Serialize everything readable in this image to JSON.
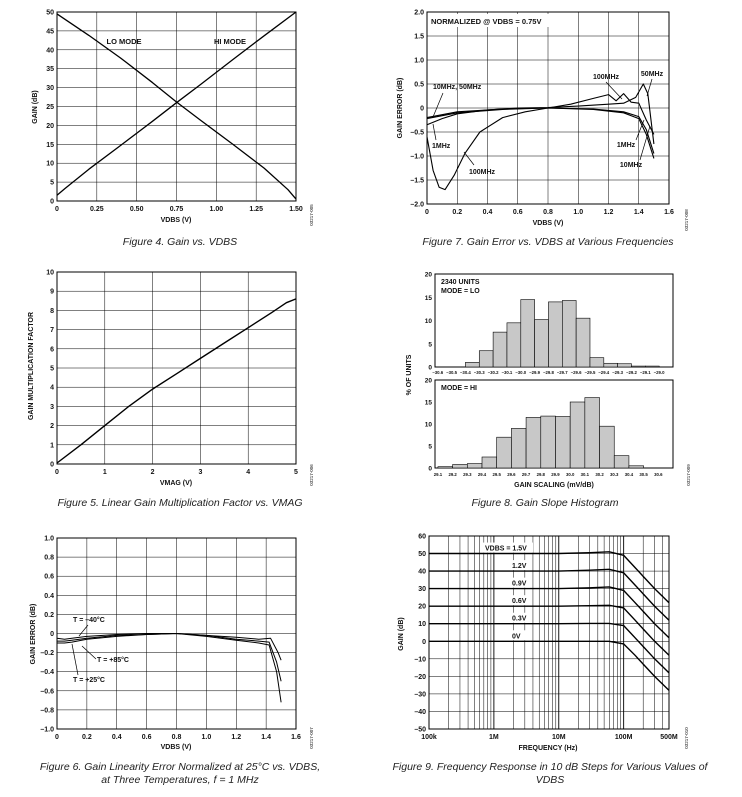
{
  "chart_data": [
    {
      "id": "fig4",
      "type": "line",
      "caption": "Figure 4. Gain vs. VDBS",
      "xlabel": "VDBS (V)",
      "ylabel": "GAIN (dB)",
      "xlim": [
        0,
        1.5
      ],
      "ylim": [
        0,
        50
      ],
      "xticks": [
        "0",
        "0.25",
        "0.50",
        "0.75",
        "1.00",
        "1.25",
        "1.50"
      ],
      "yticks": [
        "0",
        "5",
        "10",
        "15",
        "20",
        "25",
        "30",
        "35",
        "40",
        "45",
        "50"
      ],
      "grid": true,
      "series": [
        {
          "name": "LO MODE",
          "x": [
            0,
            0.2,
            0.4,
            0.6,
            0.75,
            0.9,
            1.1,
            1.3,
            1.45,
            1.5
          ],
          "y": [
            49.5,
            43.8,
            37.8,
            31.3,
            26.2,
            21.4,
            15.1,
            8.7,
            3.0,
            0.5
          ]
        },
        {
          "name": "HI MODE",
          "x": [
            0,
            0.05,
            0.2,
            0.4,
            0.6,
            0.75,
            0.9,
            1.1,
            1.3,
            1.5
          ],
          "y": [
            1.5,
            3.3,
            8.4,
            14.7,
            21.1,
            26.0,
            30.8,
            37.3,
            43.7,
            50.0
          ]
        }
      ],
      "annotations": [
        "LO MODE",
        "HI MODE"
      ],
      "side_code": "03217-005"
    },
    {
      "id": "fig7",
      "type": "line",
      "caption": "Figure 7. Gain Error vs. VDBS at Various Frequencies",
      "xlabel": "VDBS (V)",
      "ylabel": "GAIN ERROR (dB)",
      "xlim": [
        0,
        1.6
      ],
      "ylim": [
        -2.0,
        2.0
      ],
      "xticks": [
        "0",
        "0.2",
        "0.4",
        "0.6",
        "0.8",
        "1.0",
        "1.2",
        "1.4",
        "1.6"
      ],
      "yticks": [
        "–2.0",
        "–1.5",
        "–1.0",
        "–0.5",
        "0",
        "0.5",
        "1.0",
        "1.5",
        "2.0"
      ],
      "grid": true,
      "series": [
        {
          "name": "100MHz",
          "x": [
            0,
            0.04,
            0.08,
            0.12,
            0.18,
            0.25,
            0.35,
            0.5,
            0.65,
            0.8,
            0.95,
            1.1,
            1.2,
            1.25,
            1.3,
            1.35,
            1.4,
            1.45,
            1.5
          ],
          "y": [
            -0.6,
            -1.3,
            -1.65,
            -1.7,
            -1.4,
            -0.95,
            -0.5,
            -0.2,
            -0.08,
            0.0,
            0.08,
            0.2,
            0.28,
            0.15,
            0.3,
            0.12,
            0.1,
            -0.25,
            -0.55
          ]
        },
        {
          "name": "50MHz",
          "x": [
            0,
            0.1,
            0.2,
            0.4,
            0.6,
            0.8,
            1.0,
            1.2,
            1.3,
            1.38,
            1.43,
            1.46,
            1.5
          ],
          "y": [
            -0.35,
            -0.22,
            -0.12,
            -0.04,
            0.0,
            0.01,
            0.04,
            0.08,
            0.1,
            0.22,
            0.5,
            0.3,
            -0.75
          ]
        },
        {
          "name": "10MHz",
          "x": [
            0,
            0.2,
            0.5,
            0.8,
            1.1,
            1.3,
            1.4,
            1.45,
            1.5
          ],
          "y": [
            -0.2,
            -0.08,
            -0.02,
            0.0,
            -0.02,
            -0.08,
            -0.18,
            -0.45,
            -0.95
          ]
        },
        {
          "name": "1MHz",
          "x": [
            0,
            0.2,
            0.5,
            0.8,
            1.1,
            1.3,
            1.4,
            1.45,
            1.5
          ],
          "y": [
            -0.22,
            -0.1,
            -0.03,
            0.0,
            -0.03,
            -0.1,
            -0.22,
            -0.55,
            -1.05
          ]
        }
      ],
      "annotations": [
        "NORMALIZED @ VDBS = 0.75V",
        "10MHz, 50MHz",
        "1MHz",
        "100MHz",
        "100MHz",
        "50MHz",
        "1MHz",
        "10MHz"
      ],
      "side_code": "03217-008"
    },
    {
      "id": "fig5",
      "type": "line",
      "caption": "Figure 5. Linear Gain Multiplication Factor vs. VMAG",
      "xlabel": "VMAG (V)",
      "ylabel": "GAIN MULTIPLICATION FACTOR",
      "xlim": [
        0,
        5
      ],
      "ylim": [
        0,
        10
      ],
      "xticks": [
        "0",
        "1",
        "2",
        "3",
        "4",
        "5"
      ],
      "yticks": [
        "0",
        "1",
        "2",
        "3",
        "4",
        "5",
        "6",
        "7",
        "8",
        "9",
        "10"
      ],
      "grid": true,
      "series": [
        {
          "name": "",
          "x": [
            0,
            0.5,
            1.0,
            1.5,
            2.0,
            2.5,
            3.0,
            3.5,
            4.0,
            4.5,
            4.8,
            5.0
          ],
          "y": [
            0.05,
            1.0,
            2.0,
            3.0,
            3.9,
            4.7,
            5.5,
            6.3,
            7.1,
            7.9,
            8.4,
            8.6
          ]
        }
      ],
      "side_code": "03217-006"
    },
    {
      "id": "fig8",
      "type": "bar",
      "caption": "Figure 8. Gain Slope Histogram",
      "xlabel": "GAIN SCALING (mV/dB)",
      "ylabel": "% OF UNITS",
      "panels": [
        {
          "label": "2340 UNITS",
          "label2": "MODE = LO",
          "ylim": [
            0,
            20
          ],
          "yticks": [
            "0",
            "5",
            "10",
            "15",
            "20"
          ],
          "categories": [
            "–30.6",
            "–30.5",
            "–30.4",
            "–30.3",
            "–30.2",
            "–30.1",
            "–30.0",
            "–29.9",
            "–29.8",
            "–29.7",
            "–29.6",
            "–29.5",
            "–29.4",
            "–29.3",
            "–29.2",
            "–29.1",
            "–29.0"
          ],
          "values": [
            0,
            0,
            1,
            3.5,
            7.5,
            9.5,
            14.5,
            10.2,
            14,
            14.3,
            10.5,
            2,
            0.8,
            0.7,
            0.2,
            0.2,
            0
          ]
        },
        {
          "label": "MODE = HI",
          "ylim": [
            0,
            20
          ],
          "yticks": [
            "0",
            "5",
            "10",
            "15",
            "20"
          ],
          "categories": [
            "29.1",
            "29.2",
            "29.3",
            "29.4",
            "29.5",
            "29.6",
            "29.7",
            "29.8",
            "29.9",
            "30.0",
            "30.1",
            "30.2",
            "30.3",
            "30.4",
            "30.5",
            "30.6"
          ],
          "values": [
            0.3,
            0.8,
            1,
            2.5,
            7,
            9,
            11.5,
            11.8,
            11.7,
            15,
            16,
            9.5,
            2.8,
            0.5,
            0,
            0
          ]
        }
      ],
      "side_code": "03217-009"
    },
    {
      "id": "fig6",
      "type": "line",
      "caption": "Figure 6. Gain Linearity Error Normalized at 25°C vs. VDBS,",
      "caption2": "at Three Temperatures, f = 1 MHz",
      "xlabel": "VDBS (V)",
      "ylabel": "GAIN ERROR (dB)",
      "xlim": [
        0,
        1.6
      ],
      "ylim": [
        -1.0,
        1.0
      ],
      "xticks": [
        "0",
        "0.2",
        "0.4",
        "0.6",
        "0.8",
        "1.0",
        "1.2",
        "1.4",
        "1.6"
      ],
      "yticks": [
        "–1.0",
        "–0.8",
        "–0.6",
        "–0.4",
        "–0.2",
        "0",
        "0.2",
        "0.4",
        "0.6",
        "0.8",
        "1.0"
      ],
      "grid": true,
      "series": [
        {
          "name": "T = –40°C",
          "x": [
            0,
            0.05,
            0.1,
            0.2,
            0.4,
            0.6,
            0.8,
            1.0,
            1.2,
            1.35,
            1.43,
            1.48,
            1.5
          ],
          "y": [
            -0.05,
            -0.06,
            -0.05,
            -0.03,
            -0.01,
            0.0,
            0.0,
            -0.02,
            -0.04,
            -0.06,
            -0.05,
            -0.2,
            -0.28
          ]
        },
        {
          "name": "T = +85°C",
          "x": [
            0,
            0.05,
            0.1,
            0.2,
            0.4,
            0.6,
            0.8,
            1.0,
            1.2,
            1.35,
            1.42,
            1.47,
            1.5
          ],
          "y": [
            -0.1,
            -0.1,
            -0.09,
            -0.06,
            -0.03,
            -0.01,
            0.0,
            -0.03,
            -0.07,
            -0.1,
            -0.12,
            -0.4,
            -0.72
          ]
        },
        {
          "name": "T = +25°C",
          "x": [
            0,
            0.05,
            0.1,
            0.2,
            0.4,
            0.6,
            0.8,
            1.0,
            1.2,
            1.35,
            1.42,
            1.47,
            1.5
          ],
          "y": [
            -0.08,
            -0.08,
            -0.07,
            -0.05,
            -0.02,
            -0.01,
            0.0,
            -0.02,
            -0.06,
            -0.08,
            -0.09,
            -0.3,
            -0.5
          ]
        }
      ],
      "annotations": [
        "T = –40°C",
        "T = +85°C",
        "T = +25°C"
      ],
      "side_code": "03217-007"
    },
    {
      "id": "fig9",
      "type": "line",
      "caption": "Figure 9. Frequency Response in 10 dB Steps for Various Values of VDBS",
      "xlabel": "FREQUENCY (Hz)",
      "ylabel": "GAIN (dB)",
      "xscale": "log",
      "xlim": [
        100000,
        500000000
      ],
      "ylim": [
        -50,
        60
      ],
      "xticks": [
        "100k",
        "1M",
        "10M",
        "100M",
        "500M"
      ],
      "yticks": [
        "–50",
        "–40",
        "–30",
        "–20",
        "–10",
        "0",
        "10",
        "20",
        "30",
        "40",
        "50",
        "60"
      ],
      "grid": true,
      "series": [
        {
          "name": "VDBS = 1.5V",
          "x": [
            100000,
            1000000,
            10000000,
            30000000,
            60000000,
            100000000,
            150000000,
            200000000,
            300000000,
            500000000
          ],
          "y": [
            50,
            50,
            50,
            50.5,
            51,
            49,
            42,
            37,
            30,
            22
          ]
        },
        {
          "name": "1.2V",
          "x": [
            100000,
            1000000,
            10000000,
            30000000,
            60000000,
            100000000,
            150000000,
            200000000,
            300000000,
            500000000
          ],
          "y": [
            40,
            40,
            40,
            40.5,
            41,
            39,
            32,
            27,
            20,
            12
          ]
        },
        {
          "name": "0.9V",
          "x": [
            100000,
            1000000,
            10000000,
            30000000,
            60000000,
            100000000,
            150000000,
            200000000,
            300000000,
            500000000
          ],
          "y": [
            30,
            30,
            30,
            30.5,
            31,
            29,
            22,
            17,
            10,
            2
          ]
        },
        {
          "name": "0.6V",
          "x": [
            100000,
            1000000,
            10000000,
            30000000,
            60000000,
            100000000,
            150000000,
            200000000,
            300000000,
            500000000
          ],
          "y": [
            20,
            20,
            20,
            20.3,
            20.5,
            19,
            12,
            7,
            0,
            -8
          ]
        },
        {
          "name": "0.3V",
          "x": [
            100000,
            1000000,
            10000000,
            30000000,
            60000000,
            100000000,
            150000000,
            200000000,
            300000000,
            500000000
          ],
          "y": [
            10,
            10,
            10,
            10.2,
            10.2,
            9,
            2,
            -3,
            -10,
            -18
          ]
        },
        {
          "name": "0V",
          "x": [
            100000,
            1000000,
            10000000,
            30000000,
            60000000,
            100000000,
            150000000,
            200000000,
            300000000,
            500000000
          ],
          "y": [
            0,
            0,
            0,
            0,
            0,
            -1.5,
            -8,
            -13,
            -20,
            -28
          ]
        }
      ],
      "side_code": "03217-010"
    }
  ]
}
